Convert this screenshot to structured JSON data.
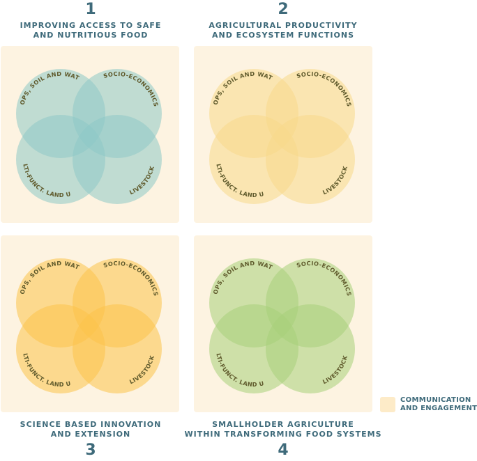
{
  "quadrants": [
    {
      "number": "1",
      "title_lines": [
        "IMPROVING ACCESS TO SAFE",
        "AND NUTRITIOUS FOOD"
      ],
      "color": "#8ec9c6"
    },
    {
      "number": "2",
      "title_lines": [
        "AGRICULTURAL PRODUCTIVITY",
        "AND ECOSYSTEM FUNCTIONS"
      ],
      "color": "#f7d98a"
    },
    {
      "number": "3",
      "title_lines": [
        "SCIENCE BASED INNOVATION",
        "AND EXTENSION"
      ],
      "color": "#fbc34a"
    },
    {
      "number": "4",
      "title_lines": [
        "SMALLHOLDER AGRICULTURE",
        "WITHIN TRANSFORMING FOOD SYSTEMS"
      ],
      "color": "#a8d07a"
    }
  ],
  "circle_labels": {
    "top_left": "CROPS, SOIL AND WATER",
    "top_right": "SOCIO-ECONOMICS",
    "bottom_left": "MULTI-FUNCT. LAND USE",
    "bottom_right": "LIVESTOCK"
  },
  "legend": {
    "lines": [
      "COMMUNICATION",
      "AND ENGAGEMENT"
    ],
    "color": "#fdebc8"
  }
}
